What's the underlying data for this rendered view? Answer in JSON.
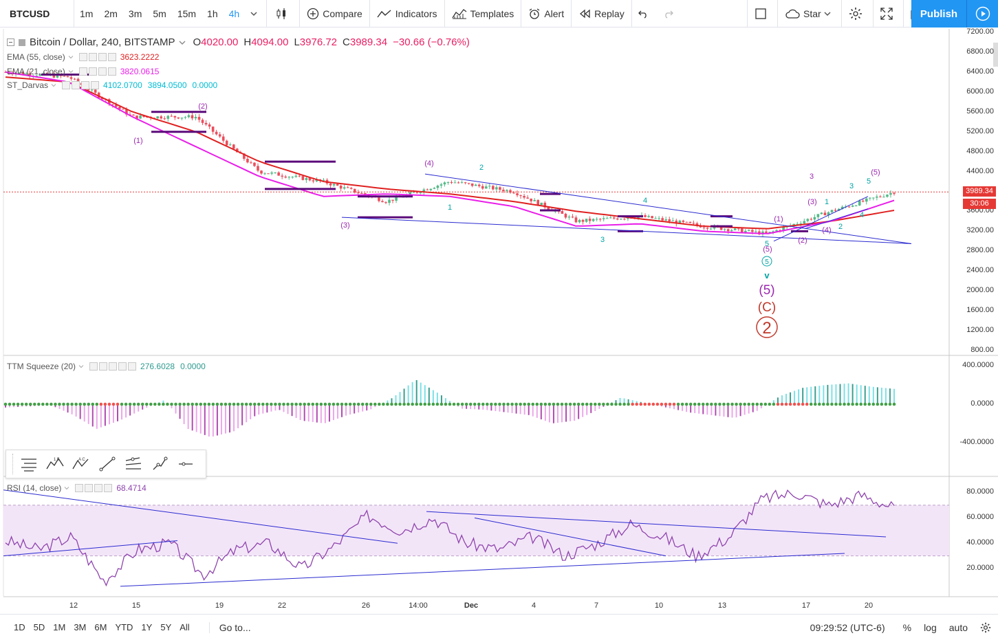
{
  "toolbar": {
    "symbol": "BTCUSD",
    "intervals": [
      "1m",
      "2m",
      "3m",
      "5m",
      "15m",
      "1h",
      "4h"
    ],
    "active_interval": "4h",
    "compare_label": "Compare",
    "indicators_label": "Indicators",
    "templates_label": "Templates",
    "alert_label": "Alert",
    "replay_label": "Replay",
    "star_label": "Star",
    "publish_label": "Publish"
  },
  "legend": {
    "title": "Bitcoin / Dollar, 240, BITSTAMP",
    "open_label": "O",
    "open": "4020.00",
    "high_label": "H",
    "high": "4094.00",
    "low_label": "L",
    "low": "3976.72",
    "close_label": "C",
    "close": "3989.34",
    "change": "−30.66 (−0.76%)",
    "ema55_name": "EMA (55, close)",
    "ema55_value": "3623.2222",
    "ema21_name": "EMA (21, close)",
    "ema21_value": "3820.0615",
    "darvas_name": "ST_Darvas",
    "darvas_v1": "4102.0700",
    "darvas_v2": "3894.0500",
    "darvas_v3": "0.0000",
    "ttm_name": "TTM Squeeze (20)",
    "ttm_v1": "276.6028",
    "ttm_v2": "0.0000",
    "rsi_name": "RSI (14, close)",
    "rsi_value": "68.4714"
  },
  "price_axis": {
    "labels": [
      "7200.00",
      "6800.00",
      "6400.00",
      "6000.00",
      "5600.00",
      "5200.00",
      "4800.00",
      "4400.00",
      "3600.00",
      "3200.00",
      "2800.00",
      "2400.00",
      "2000.00",
      "1600.00",
      "1200.00",
      "800.00"
    ],
    "current_price": "3989.34",
    "countdown": "30:06"
  },
  "ttm_axis": {
    "labels": [
      "400.0000",
      "0.0000",
      "-400.0000"
    ]
  },
  "rsi_axis": {
    "labels": [
      "80.0000",
      "60.0000",
      "40.0000",
      "20.0000"
    ]
  },
  "time_axis": {
    "labels": [
      "12",
      "15",
      "19",
      "22",
      "26",
      "14:00",
      "Dec",
      "4",
      "7",
      "10",
      "13",
      "17",
      "20"
    ]
  },
  "annotations": {
    "wave_labels": [
      "(1)",
      "(2)",
      "(3)",
      "(4)",
      "(5)",
      "(1)",
      "(2)",
      "(3)",
      "(4)",
      "(5)",
      "1",
      "2",
      "3",
      "4",
      "5",
      "1",
      "2",
      "3",
      "4",
      "5",
      "3"
    ],
    "big_wave_5": "(5)",
    "big_wave_c": "(C)",
    "big_wave_2": "2",
    "wave_5_circled": "5",
    "arrow_v": "v"
  },
  "bottom": {
    "ranges": [
      "1D",
      "5D",
      "1M",
      "3M",
      "6M",
      "YTD",
      "1Y",
      "5Y",
      "All"
    ],
    "goto_label": "Go to...",
    "time": "09:29:52 (UTC-6)",
    "percent_label": "%",
    "log_label": "log",
    "auto_label": "auto"
  },
  "colors": {
    "accent": "#2196f3",
    "candle_up": "#53b987",
    "candle_down": "#eb4d5c",
    "ema55": "#e02020",
    "ema21": "#e91ee9",
    "wave_purple": "#9c27b0",
    "wave_teal": "#00a3a3",
    "darvas_box": "#5b0a7a",
    "trendline": "#2a2ad0",
    "rsi_line": "#8e44ad",
    "rsi_band": "#f3e5f8"
  },
  "chart_data": {
    "type": "candlestick",
    "symbol": "Bitcoin / Dollar, 240, BITSTAMP",
    "price_range": [
      800,
      7200
    ],
    "series_ema55_approx": [
      6300,
      6200,
      5600,
      5200,
      4600,
      4200,
      4050,
      3950,
      3800,
      3600,
      3450,
      3300,
      3250,
      3400,
      3620
    ],
    "series_ema21_approx": [
      6400,
      6200,
      5500,
      4900,
      4300,
      3900,
      3950,
      3900,
      3700,
      3300,
      3350,
      3200,
      3150,
      3400,
      3820
    ],
    "series_price_approx": [
      6400,
      6300,
      5500,
      5500,
      4400,
      4200,
      3800,
      4200,
      4000,
      3400,
      3500,
      3300,
      3150,
      3600,
      3989
    ],
    "ttm_range": [
      -600,
      600
    ],
    "rsi_range": [
      0,
      90
    ],
    "rsi_approx": [
      42,
      35,
      45,
      10,
      35,
      40,
      15,
      35,
      40,
      20,
      38,
      62,
      50,
      60,
      40,
      35,
      45,
      30,
      40,
      55,
      45,
      30,
      45,
      75,
      80,
      70,
      78,
      68
    ]
  }
}
